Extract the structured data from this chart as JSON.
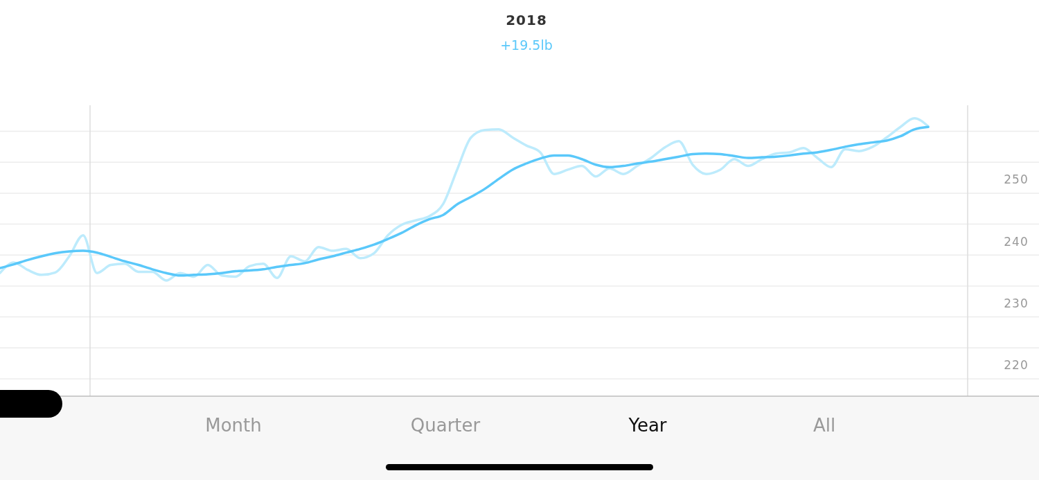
{
  "chart_data": {
    "type": "line",
    "title": "2018",
    "subtitle": "+19.5lb",
    "categories": [
      null,
      null,
      null,
      null,
      null,
      null,
      null,
      null,
      null,
      null,
      null,
      null,
      null,
      null,
      null,
      null,
      null,
      null,
      null,
      null,
      null,
      null,
      null,
      null,
      null,
      null,
      null,
      null,
      null,
      null,
      null,
      null,
      null,
      null,
      null,
      null,
      null,
      null,
      null,
      null,
      null,
      null,
      null,
      null,
      null,
      null,
      null,
      null,
      null,
      null,
      null,
      null,
      null,
      null,
      null,
      null,
      null,
      null,
      null,
      null,
      null,
      null,
      null,
      null,
      null,
      null,
      null,
      null
    ],
    "series": [
      {
        "color": "#bdebfc",
        "values": [
          234.9,
          236.6,
          235.4,
          234.6,
          235.0,
          237.6,
          241.0,
          234.9,
          236.2,
          236.4,
          235.1,
          235.1,
          233.7,
          234.9,
          234.3,
          236.2,
          234.5,
          234.3,
          236.0,
          236.4,
          234.1,
          237.6,
          236.8,
          239.1,
          238.5,
          238.8,
          237.3,
          238.1,
          241.0,
          242.7,
          243.4,
          244.1,
          246.1,
          251.6,
          256.8,
          258.0,
          258.1,
          256.8,
          255.5,
          254.4,
          250.9,
          251.6,
          252.2,
          250.5,
          251.8,
          250.9,
          252.2,
          253.5,
          255.2,
          256.2,
          252.4,
          250.9,
          251.6,
          253.3,
          252.2,
          253.3,
          254.2,
          254.4,
          255.1,
          253.5,
          252.0,
          254.9,
          254.6,
          255.3,
          256.8,
          258.5,
          259.9,
          258.6
        ]
      },
      {
        "color": "#5ac8fa",
        "values": [
          235.7,
          236.3,
          237.0,
          237.6,
          238.1,
          238.4,
          238.5,
          238.2,
          237.5,
          236.8,
          236.2,
          235.5,
          234.9,
          234.5,
          234.6,
          234.7,
          234.9,
          235.2,
          235.3,
          235.5,
          235.9,
          236.2,
          236.5,
          237.1,
          237.6,
          238.2,
          238.8,
          239.5,
          240.4,
          241.4,
          242.6,
          243.6,
          244.3,
          246.0,
          247.2,
          248.5,
          250.1,
          251.6,
          252.6,
          253.4,
          253.9,
          253.9,
          253.3,
          252.4,
          252.0,
          252.2,
          252.6,
          252.9,
          253.3,
          253.7,
          254.1,
          254.2,
          254.1,
          253.8,
          253.5,
          253.6,
          253.7,
          253.9,
          254.2,
          254.4,
          254.8,
          255.3,
          255.7,
          256.0,
          256.3,
          257.0,
          258.1,
          258.5
        ]
      }
    ],
    "ylim": [
      215,
      262
    ],
    "yticks": [
      {
        "value": 217.8,
        "label": null
      },
      220,
      {
        "value": 222.8,
        "label": null
      },
      {
        "value": 227.8,
        "label": null
      },
      230,
      {
        "value": 232.8,
        "label": null
      },
      {
        "value": 237.8,
        "label": null
      },
      240,
      {
        "value": 242.8,
        "label": null
      },
      {
        "value": 247.8,
        "label": null
      },
      250,
      {
        "value": 252.8,
        "label": null
      },
      {
        "value": 257.8,
        "label": null
      }
    ],
    "grid": "y",
    "marker": "none",
    "line_style": "solid",
    "tick_labels": "y",
    "annotations": [
      "Month",
      "Quarter",
      "Year",
      "All"
    ]
  }
}
